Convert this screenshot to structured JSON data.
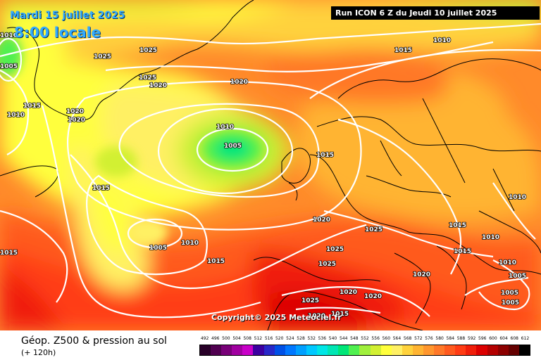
{
  "header": {
    "date_label": "Mardi 15 juillet 2025",
    "time_label": "8:00 locale",
    "run_label": "Run ICON 6 Z du Jeudi 10 juillet 2025"
  },
  "copyright": "Copyright© 2025 Meteociel.fr",
  "footer": {
    "title": "Géop. Z500 & pression au sol",
    "subtitle": "(+ 120h)"
  },
  "legend": {
    "values": [
      "492",
      "496",
      "500",
      "504",
      "508",
      "512",
      "516",
      "520",
      "524",
      "528",
      "532",
      "536",
      "540",
      "544",
      "548",
      "552",
      "556",
      "560",
      "564",
      "568",
      "572",
      "576",
      "580",
      "584",
      "588",
      "592",
      "596",
      "600",
      "604",
      "608",
      "612"
    ],
    "colors": [
      "#280028",
      "#500050",
      "#780078",
      "#a000a0",
      "#c800c8",
      "#3c00a0",
      "#2828c8",
      "#0050e6",
      "#0078ff",
      "#00a0ff",
      "#00c8ff",
      "#00e6e6",
      "#00e6b4",
      "#00e678",
      "#50f050",
      "#a0f03c",
      "#d2f032",
      "#ffff3c",
      "#fff064",
      "#ffd23c",
      "#ffb432",
      "#ff962d",
      "#ff7828",
      "#ff5a1e",
      "#ff3c14",
      "#f01e0a",
      "#dc0000",
      "#b40000",
      "#8c0000",
      "#640000",
      "#000000"
    ]
  },
  "isobar_labels": [
    {
      "text": "1010",
      "id": "isobar-label-1010-a"
    },
    {
      "text": "1005",
      "id": "isobar-label-1005-a"
    },
    {
      "text": "1025",
      "id": "isobar-label-1025-a"
    },
    {
      "text": "1025",
      "id": "isobar-label-1025-b"
    },
    {
      "text": "1015",
      "id": "isobar-label-1015-a"
    },
    {
      "text": "1010",
      "id": "isobar-label-1010-b"
    },
    {
      "text": "1020",
      "id": "isobar-label-1020-a"
    },
    {
      "text": "1020",
      "id": "isobar-label-1020-b"
    },
    {
      "text": "1025",
      "id": "isobar-label-1025-c"
    },
    {
      "text": "1020",
      "id": "isobar-label-1020-c"
    },
    {
      "text": "1020",
      "id": "isobar-label-1020-d"
    },
    {
      "text": "1010",
      "id": "isobar-label-1010-c"
    },
    {
      "text": "1005",
      "id": "isobar-label-1005-b"
    },
    {
      "text": "1015",
      "id": "isobar-label-1015-b"
    },
    {
      "text": "1015",
      "id": "isobar-label-1015-c"
    },
    {
      "text": "1010",
      "id": "isobar-label-1010-d"
    },
    {
      "text": "1015",
      "id": "isobar-label-1015-d"
    },
    {
      "text": "1005",
      "id": "isobar-label-1005-c"
    },
    {
      "text": "1010",
      "id": "isobar-label-1010-e"
    },
    {
      "text": "1015",
      "id": "isobar-label-1015-e"
    },
    {
      "text": "1020",
      "id": "isobar-label-1020-e"
    },
    {
      "text": "1025",
      "id": "isobar-label-1025-d"
    },
    {
      "text": "1025",
      "id": "isobar-label-1025-e"
    },
    {
      "text": "1025",
      "id": "isobar-label-1025-f"
    },
    {
      "text": "1025",
      "id": "isobar-label-1025-g"
    },
    {
      "text": "1020",
      "id": "isobar-label-1020-f"
    },
    {
      "text": "1020",
      "id": "isobar-label-1020-g"
    },
    {
      "text": "1020",
      "id": "isobar-label-1020-h"
    },
    {
      "text": "1020",
      "id": "isobar-label-1020-i"
    },
    {
      "text": "1015",
      "id": "isobar-label-1015-f"
    },
    {
      "text": "1015",
      "id": "isobar-label-1015-g"
    },
    {
      "text": "1015",
      "id": "isobar-label-1015-h"
    },
    {
      "text": "1015",
      "id": "isobar-label-1015-i"
    },
    {
      "text": "1010",
      "id": "isobar-label-1010-f"
    },
    {
      "text": "1010",
      "id": "isobar-label-1010-g"
    },
    {
      "text": "1010",
      "id": "isobar-label-1010-h"
    },
    {
      "text": "1005",
      "id": "isobar-label-1005-d"
    },
    {
      "text": "1005",
      "id": "isobar-label-1005-e"
    },
    {
      "text": "1005",
      "id": "isobar-label-1005-f"
    }
  ]
}
